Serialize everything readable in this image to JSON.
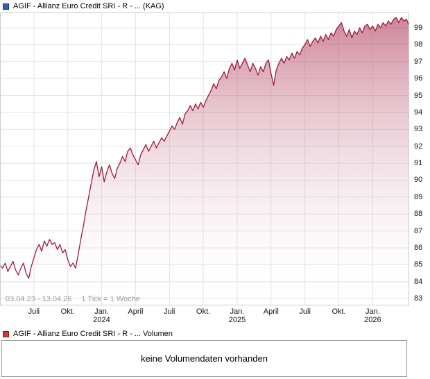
{
  "header": {
    "title": "AGIF - Allianz Euro Credit SRI - R - ... (KAG)"
  },
  "volume": {
    "title": "AGIF - Allianz Euro Credit SRI - R - ... Volumen",
    "empty_message": "keine Volumendaten vorhanden"
  },
  "colors": {
    "line": "#9a1b3a",
    "fill_top": "rgba(160,25,62,0.52)",
    "fill_bottom": "rgba(255,255,255,0.02)",
    "grid": "#e3e3e3",
    "plot_border": "#cccccc",
    "axis_text": "#111111",
    "muted_text": "#9b9b9b",
    "price_icon": "#3a5fae",
    "volume_icon": "#cd3f32",
    "panel_border": "#9e9e9e"
  },
  "chart_data": {
    "type": "area",
    "title": "AGIF - Allianz Euro Credit SRI - R - ... (KAG)",
    "date_range": "03.04.23 - 13.04.26",
    "tick_note": "1 Tick = 1 Woche",
    "legend_position": "none",
    "grid": true,
    "ylim": [
      82.6,
      99.9
    ],
    "y_ticks": [
      83,
      84,
      85,
      86,
      87,
      88,
      89,
      90,
      91,
      92,
      93,
      94,
      95,
      96,
      97,
      98,
      99
    ],
    "x_ticks": [
      {
        "label": "Juli",
        "pos": 13
      },
      {
        "label": "Okt.",
        "pos": 26
      },
      {
        "label": "Jan.",
        "year": "2024",
        "pos": 39
      },
      {
        "label": "April",
        "pos": 52
      },
      {
        "label": "Juli",
        "pos": 65
      },
      {
        "label": "Okt.",
        "pos": 78
      },
      {
        "label": "Jan.",
        "year": "2025",
        "pos": 91
      },
      {
        "label": "April",
        "pos": 104
      },
      {
        "label": "Juli",
        "pos": 117
      },
      {
        "label": "Okt.",
        "pos": 130
      },
      {
        "label": "Jan.",
        "year": "2026",
        "pos": 143
      }
    ],
    "values": [
      85.0,
      84.8,
      85.1,
      84.6,
      84.9,
      85.2,
      84.7,
      84.4,
      84.8,
      85.1,
      84.5,
      84.2,
      84.9,
      85.4,
      85.9,
      86.2,
      85.8,
      86.4,
      86.1,
      86.5,
      86.2,
      86.3,
      85.9,
      86.2,
      85.7,
      85.9,
      85.3,
      84.9,
      85.1,
      84.8,
      85.6,
      86.5,
      87.3,
      88.2,
      89.0,
      89.8,
      90.6,
      91.1,
      90.2,
      90.8,
      89.9,
      90.5,
      90.9,
      90.4,
      90.1,
      90.7,
      91.0,
      91.4,
      91.1,
      91.7,
      91.9,
      91.5,
      91.2,
      90.9,
      91.5,
      91.8,
      92.1,
      91.7,
      92.0,
      92.3,
      91.9,
      92.2,
      92.5,
      92.3,
      92.6,
      92.9,
      93.2,
      93.0,
      93.4,
      93.7,
      93.3,
      93.9,
      94.1,
      94.4,
      94.1,
      94.5,
      94.2,
      94.6,
      94.3,
      94.7,
      95.0,
      95.3,
      95.7,
      95.4,
      95.9,
      96.1,
      96.4,
      96.0,
      96.6,
      96.9,
      96.5,
      97.1,
      96.6,
      96.9,
      97.2,
      96.8,
      96.4,
      96.9,
      96.6,
      96.2,
      96.7,
      96.4,
      96.9,
      97.1,
      96.3,
      95.6,
      96.5,
      96.9,
      97.2,
      96.9,
      97.3,
      97.1,
      97.5,
      97.2,
      97.6,
      97.4,
      97.8,
      98.0,
      98.3,
      97.9,
      98.2,
      98.4,
      98.1,
      98.5,
      98.2,
      98.6,
      98.3,
      98.7,
      98.5,
      98.9,
      99.1,
      99.3,
      98.8,
      98.5,
      98.9,
      98.4,
      98.8,
      98.6,
      99.0,
      98.7,
      99.1,
      99.2,
      98.9,
      99.1,
      98.8,
      99.2,
      99.0,
      99.3,
      99.1,
      99.4,
      99.2,
      99.5,
      99.6,
      99.3,
      99.6,
      99.4,
      99.5,
      99.1
    ]
  }
}
